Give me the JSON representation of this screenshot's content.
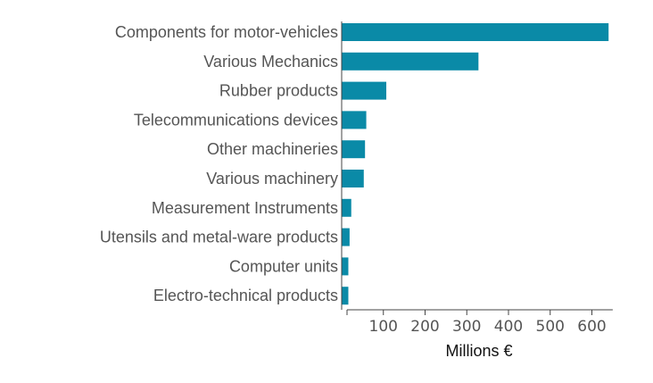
{
  "chart_data": {
    "type": "bar",
    "orientation": "horizontal",
    "categories": [
      "Components for motor-vehicles",
      "Various Mechanics",
      "Rubber products",
      "Telecommunications devices",
      "Other machineries",
      "Various machinery",
      "Measurement Instruments",
      "Utensils and metal-ware products",
      "Computer units",
      "Electro-technical products"
    ],
    "values": [
      640,
      328,
      107,
      59,
      56,
      53,
      23,
      19,
      16,
      16
    ],
    "xlabel": "Millions €",
    "ylabel": "",
    "title": "",
    "xlim": [
      0,
      650
    ],
    "xticks": [
      100,
      200,
      300,
      400,
      500,
      600
    ],
    "bar_color": "#0a8aa7",
    "grid": false,
    "legend": "none"
  }
}
